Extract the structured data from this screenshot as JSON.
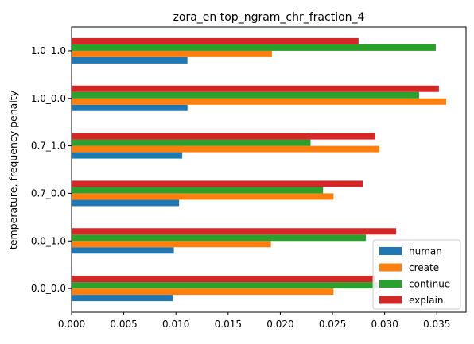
{
  "chart_data": {
    "type": "bar",
    "orientation": "horizontal",
    "title": "zora_en top_ngram_chr_fraction_4",
    "xlabel": "",
    "ylabel": "temperature, frequency penalty",
    "xlim": [
      0,
      0.0378
    ],
    "xticks": [
      "0.000",
      "0.005",
      "0.010",
      "0.015",
      "0.020",
      "0.025",
      "0.030",
      "0.035"
    ],
    "categories": [
      "0.0_0.0",
      "0.0_1.0",
      "0.7_0.0",
      "0.7_1.0",
      "1.0_0.0",
      "1.0_1.0"
    ],
    "series": [
      {
        "name": "human",
        "color": "#1f77b4",
        "values": [
          0.0097,
          0.0098,
          0.0103,
          0.0106,
          0.0111,
          0.0111
        ]
      },
      {
        "name": "create",
        "color": "#ff7f0e",
        "values": [
          0.0251,
          0.0191,
          0.0251,
          0.0295,
          0.0359,
          0.0192
        ]
      },
      {
        "name": "continue",
        "color": "#2ca02c",
        "values": [
          0.0293,
          0.0282,
          0.0241,
          0.0229,
          0.0333,
          0.0349
        ]
      },
      {
        "name": "explain",
        "color": "#d62728",
        "values": [
          0.0291,
          0.0311,
          0.0279,
          0.0291,
          0.0352,
          0.0275
        ]
      }
    ],
    "grid": false,
    "legend_position": "lower-right"
  }
}
